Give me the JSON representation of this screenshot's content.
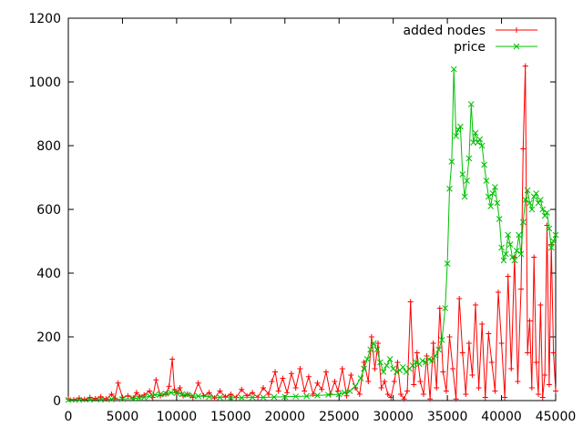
{
  "chart_data": {
    "type": "line",
    "xlim": [
      0,
      45000
    ],
    "ylim": [
      0,
      1200
    ],
    "xticks": [
      "0",
      "5000",
      "10000",
      "15000",
      "20000",
      "25000",
      "30000",
      "35000",
      "40000",
      "45000"
    ],
    "yticks": [
      "0",
      "200",
      "400",
      "600",
      "800",
      "1000",
      "1200"
    ],
    "grid": false,
    "legend_position": "top-right",
    "series": [
      {
        "name": "added nodes",
        "color": "#ff0000",
        "marker": "plus",
        "x": [
          0,
          500,
          1000,
          1500,
          2000,
          2500,
          3000,
          3500,
          4000,
          4300,
          4600,
          5000,
          5500,
          6000,
          6300,
          6600,
          7000,
          7500,
          7800,
          8100,
          8500,
          9000,
          9300,
          9600,
          9800,
          10000,
          10300,
          10600,
          11000,
          11500,
          12000,
          12500,
          13000,
          13500,
          14000,
          14500,
          15000,
          15500,
          16000,
          16500,
          17000,
          17500,
          18000,
          18500,
          18800,
          19100,
          19400,
          19800,
          20200,
          20600,
          21000,
          21400,
          21800,
          22200,
          22600,
          23000,
          23400,
          23800,
          24200,
          24600,
          24900,
          25300,
          25700,
          26100,
          26500,
          26900,
          27300,
          27700,
          28000,
          28300,
          28600,
          28900,
          29200,
          29500,
          29800,
          30100,
          30400,
          30700,
          31000,
          31300,
          31600,
          31900,
          32200,
          32500,
          32800,
          33100,
          33400,
          33700,
          34000,
          34300,
          34600,
          34900,
          35200,
          35500,
          35800,
          36100,
          36400,
          36700,
          37000,
          37300,
          37600,
          37900,
          38200,
          38500,
          38800,
          39100,
          39400,
          39700,
          40000,
          40300,
          40600,
          40900,
          41200,
          41500,
          41800,
          42000,
          42200,
          42400,
          42600,
          42800,
          43000,
          43200,
          43400,
          43600,
          43800,
          44000,
          44200,
          44400,
          44600,
          44800,
          45000
        ],
        "y": [
          5,
          3,
          8,
          4,
          10,
          6,
          12,
          5,
          20,
          8,
          55,
          10,
          15,
          8,
          25,
          12,
          18,
          30,
          10,
          65,
          15,
          20,
          45,
          130,
          35,
          25,
          40,
          15,
          20,
          10,
          55,
          15,
          25,
          8,
          30,
          12,
          20,
          10,
          35,
          15,
          25,
          10,
          40,
          20,
          60,
          90,
          30,
          70,
          25,
          85,
          40,
          100,
          30,
          75,
          20,
          55,
          35,
          90,
          20,
          60,
          30,
          100,
          15,
          80,
          40,
          20,
          120,
          60,
          200,
          100,
          180,
          40,
          60,
          20,
          10,
          60,
          120,
          20,
          5,
          30,
          310,
          50,
          150,
          60,
          20,
          140,
          5,
          180,
          40,
          290,
          90,
          30,
          200,
          100,
          5,
          320,
          150,
          20,
          180,
          80,
          300,
          40,
          240,
          10,
          210,
          120,
          30,
          340,
          180,
          10,
          390,
          100,
          450,
          60,
          350,
          790,
          1050,
          150,
          250,
          40,
          450,
          120,
          20,
          300,
          10,
          80,
          550,
          50,
          490,
          150,
          30
        ]
      },
      {
        "name": "price",
        "color": "#00c000",
        "marker": "x",
        "x": [
          0,
          1000,
          2000,
          3000,
          4000,
          5000,
          6000,
          6500,
          7000,
          7500,
          8000,
          8500,
          9000,
          9500,
          10000,
          10500,
          11000,
          11500,
          12000,
          13000,
          14000,
          15000,
          16000,
          17000,
          18000,
          19000,
          20000,
          21000,
          22000,
          23000,
          24000,
          25000,
          25500,
          26000,
          26500,
          27000,
          27300,
          27600,
          27900,
          28200,
          28500,
          28800,
          29100,
          29400,
          29700,
          30000,
          30300,
          30600,
          30900,
          31200,
          31500,
          31800,
          32100,
          32400,
          32700,
          33000,
          33300,
          33600,
          33900,
          34200,
          34500,
          34800,
          35000,
          35200,
          35400,
          35600,
          35800,
          36000,
          36200,
          36400,
          36600,
          36800,
          37000,
          37200,
          37400,
          37600,
          37800,
          38000,
          38200,
          38400,
          38600,
          38800,
          39000,
          39200,
          39400,
          39600,
          39800,
          40000,
          40200,
          40400,
          40600,
          40800,
          41000,
          41200,
          41400,
          41600,
          41800,
          42000,
          42200,
          42400,
          42600,
          42800,
          43000,
          43200,
          43400,
          43600,
          43800,
          44000,
          44200,
          44400,
          44600,
          44800,
          45000
        ],
        "y": [
          2,
          2,
          3,
          3,
          4,
          5,
          6,
          8,
          10,
          14,
          18,
          20,
          22,
          25,
          24,
          20,
          18,
          15,
          14,
          12,
          10,
          9,
          9,
          10,
          10,
          11,
          12,
          13,
          14,
          16,
          18,
          20,
          25,
          30,
          45,
          70,
          100,
          130,
          160,
          180,
          160,
          120,
          90,
          110,
          130,
          100,
          90,
          95,
          105,
          90,
          100,
          110,
          120,
          115,
          125,
          120,
          130,
          125,
          140,
          160,
          190,
          290,
          430,
          665,
          750,
          1040,
          830,
          850,
          860,
          710,
          640,
          690,
          760,
          930,
          810,
          840,
          810,
          820,
          800,
          740,
          690,
          640,
          610,
          650,
          670,
          620,
          570,
          480,
          440,
          460,
          520,
          490,
          450,
          440,
          470,
          520,
          460,
          560,
          630,
          660,
          620,
          600,
          640,
          650,
          620,
          630,
          600,
          580,
          590,
          540,
          480,
          500,
          520
        ]
      }
    ]
  }
}
